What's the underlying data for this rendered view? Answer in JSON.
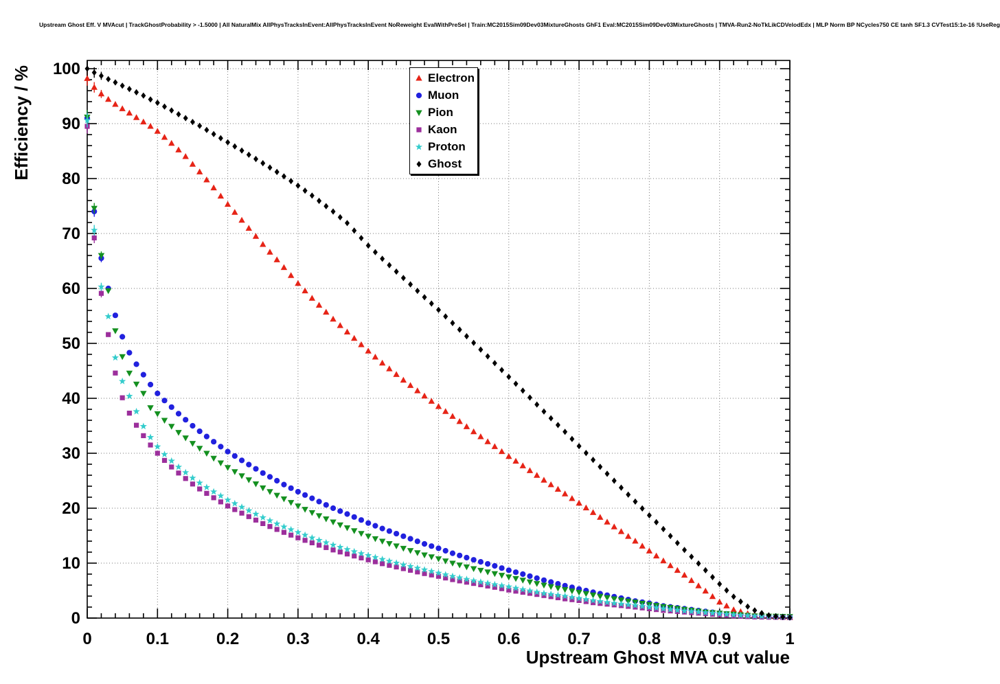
{
  "title": "Upstream Ghost Eff. V MVAcut | TrackGhostProbability > -1.5000 | All NaturalMix AllPhysTracksInEvent:AllPhysTracksInEvent NoReweight EvalWithPreSel | Train:MC2015Sim09Dev03MixtureGhosts GhF1 Eval:MC2015Sim09Dev03MixtureGhosts | TMVA-Run2-NoTkLikCDVelodEdx | MLP Norm BP NCycles750 CE tanh SF1.3 CVTest15:1e-16 !UseReg",
  "chart_data": {
    "type": "scatter",
    "title": "",
    "xlabel": "Upstream Ghost MVA cut value",
    "ylabel": "Efficiency / %",
    "xlim": [
      0,
      1
    ],
    "ylim": [
      0,
      100
    ],
    "grid": "dotted",
    "legend_position": "top-center",
    "x_tick_values": [
      0,
      0.1,
      0.2,
      0.3,
      0.4,
      0.5,
      0.6,
      0.7,
      0.8,
      0.9,
      1
    ],
    "x_tick_labels": [
      "0",
      "0.1",
      "0.2",
      "0.3",
      "0.4",
      "0.5",
      "0.6",
      "0.7",
      "0.8",
      "0.9",
      "1"
    ],
    "y_tick_values": [
      0,
      10,
      20,
      30,
      40,
      50,
      60,
      70,
      80,
      90,
      100
    ],
    "y_tick_labels": [
      "0",
      "10",
      "20",
      "30",
      "40",
      "50",
      "60",
      "70",
      "80",
      "90",
      "100"
    ],
    "series": [
      {
        "name": "Electron",
        "color": "#e62417",
        "marker": "triangle-up",
        "points": [
          [
            0,
            98.2
          ],
          [
            0.01,
            96.6
          ],
          [
            0.02,
            95.4
          ],
          [
            0.03,
            94.4
          ],
          [
            0.04,
            93.5
          ],
          [
            0.05,
            92.7
          ],
          [
            0.06,
            91.9
          ],
          [
            0.07,
            91.1
          ],
          [
            0.08,
            90.3
          ],
          [
            0.09,
            89.5
          ],
          [
            0.1,
            88.6
          ],
          [
            0.12,
            86.4
          ],
          [
            0.14,
            84
          ],
          [
            0.16,
            81.2
          ],
          [
            0.18,
            78.3
          ],
          [
            0.2,
            75.3
          ],
          [
            0.22,
            72.4
          ],
          [
            0.25,
            68
          ],
          [
            0.28,
            63.8
          ],
          [
            0.3,
            60.9
          ],
          [
            0.32,
            58.2
          ],
          [
            0.35,
            54.4
          ],
          [
            0.38,
            50.9
          ],
          [
            0.4,
            48.6
          ],
          [
            0.42,
            46.4
          ],
          [
            0.45,
            43.3
          ],
          [
            0.48,
            40.4
          ],
          [
            0.5,
            38.5
          ],
          [
            0.52,
            36.7
          ],
          [
            0.55,
            33.9
          ],
          [
            0.58,
            31.2
          ],
          [
            0.6,
            29.4
          ],
          [
            0.62,
            27.7
          ],
          [
            0.65,
            25.1
          ],
          [
            0.68,
            22.6
          ],
          [
            0.7,
            20.9
          ],
          [
            0.72,
            19.2
          ],
          [
            0.75,
            16.6
          ],
          [
            0.78,
            14
          ],
          [
            0.8,
            12.2
          ],
          [
            0.82,
            10.4
          ],
          [
            0.85,
            7.8
          ],
          [
            0.88,
            4.9
          ],
          [
            0.9,
            2.9
          ],
          [
            0.92,
            1.5
          ],
          [
            0.94,
            0.8
          ],
          [
            0.96,
            0.4
          ],
          [
            0.98,
            0.2
          ],
          [
            1,
            0.1
          ]
        ]
      },
      {
        "name": "Muon",
        "color": "#2121de",
        "marker": "circle",
        "points": [
          [
            0,
            91
          ],
          [
            0.01,
            74
          ],
          [
            0.02,
            65.5
          ],
          [
            0.03,
            60
          ],
          [
            0.04,
            55.1
          ],
          [
            0.05,
            51.2
          ],
          [
            0.06,
            48.3
          ],
          [
            0.07,
            46.2
          ],
          [
            0.08,
            44.3
          ],
          [
            0.09,
            42.5
          ],
          [
            0.1,
            40.9
          ],
          [
            0.11,
            39.6
          ],
          [
            0.12,
            38.4
          ],
          [
            0.13,
            37.2
          ],
          [
            0.14,
            36.1
          ],
          [
            0.15,
            35
          ],
          [
            0.16,
            34
          ],
          [
            0.18,
            32.1
          ],
          [
            0.2,
            30.3
          ],
          [
            0.22,
            28.7
          ],
          [
            0.25,
            26.4
          ],
          [
            0.28,
            24.3
          ],
          [
            0.3,
            23
          ],
          [
            0.32,
            21.8
          ],
          [
            0.35,
            20
          ],
          [
            0.38,
            18.4
          ],
          [
            0.4,
            17.3
          ],
          [
            0.42,
            16.3
          ],
          [
            0.45,
            14.9
          ],
          [
            0.48,
            13.5
          ],
          [
            0.5,
            12.7
          ],
          [
            0.52,
            11.8
          ],
          [
            0.55,
            10.6
          ],
          [
            0.58,
            9.5
          ],
          [
            0.6,
            8.7
          ],
          [
            0.62,
            8
          ],
          [
            0.65,
            6.9
          ],
          [
            0.68,
            5.9
          ],
          [
            0.7,
            5.3
          ],
          [
            0.72,
            4.7
          ],
          [
            0.75,
            3.9
          ],
          [
            0.78,
            3.1
          ],
          [
            0.8,
            2.7
          ],
          [
            0.82,
            2.2
          ],
          [
            0.85,
            1.7
          ],
          [
            0.88,
            1.2
          ],
          [
            0.9,
            0.9
          ],
          [
            0.92,
            0.6
          ],
          [
            0.95,
            0.3
          ],
          [
            1,
            0.1
          ]
        ]
      },
      {
        "name": "Pion",
        "color": "#149020",
        "marker": "triangle-down",
        "points": [
          [
            0,
            91.2
          ],
          [
            0.01,
            74.6
          ],
          [
            0.02,
            66
          ],
          [
            0.03,
            59.6
          ],
          [
            0.04,
            52.3
          ],
          [
            0.05,
            47.6
          ],
          [
            0.06,
            44.6
          ],
          [
            0.07,
            42.6
          ],
          [
            0.08,
            40.9
          ],
          [
            0.09,
            38.3
          ],
          [
            0.1,
            37.2
          ],
          [
            0.11,
            36
          ],
          [
            0.12,
            34.9
          ],
          [
            0.13,
            33.8
          ],
          [
            0.14,
            32.8
          ],
          [
            0.15,
            31.8
          ],
          [
            0.16,
            30.9
          ],
          [
            0.18,
            29.1
          ],
          [
            0.2,
            27.4
          ],
          [
            0.22,
            25.9
          ],
          [
            0.25,
            23.7
          ],
          [
            0.28,
            21.7
          ],
          [
            0.3,
            20.4
          ],
          [
            0.32,
            19.2
          ],
          [
            0.35,
            17.5
          ],
          [
            0.38,
            15.9
          ],
          [
            0.4,
            14.9
          ],
          [
            0.42,
            14
          ],
          [
            0.45,
            12.7
          ],
          [
            0.48,
            11.5
          ],
          [
            0.5,
            10.8
          ],
          [
            0.52,
            10
          ],
          [
            0.55,
            9
          ],
          [
            0.58,
            8.1
          ],
          [
            0.6,
            7.5
          ],
          [
            0.62,
            6.9
          ],
          [
            0.65,
            6
          ],
          [
            0.68,
            5.2
          ],
          [
            0.7,
            4.7
          ],
          [
            0.72,
            4.2
          ],
          [
            0.75,
            3.5
          ],
          [
            0.78,
            2.9
          ],
          [
            0.8,
            2.5
          ],
          [
            0.82,
            2.1
          ],
          [
            0.85,
            1.6
          ],
          [
            0.88,
            1.1
          ],
          [
            0.9,
            0.9
          ],
          [
            0.92,
            0.7
          ],
          [
            0.95,
            0.4
          ],
          [
            1,
            0.3
          ]
        ]
      },
      {
        "name": "Kaon",
        "color": "#9c2f9c",
        "marker": "square",
        "points": [
          [
            0,
            89.5
          ],
          [
            0.01,
            69.2
          ],
          [
            0.02,
            59.1
          ],
          [
            0.03,
            51.6
          ],
          [
            0.04,
            44.6
          ],
          [
            0.05,
            40.1
          ],
          [
            0.06,
            37.3
          ],
          [
            0.07,
            35.1
          ],
          [
            0.08,
            33.2
          ],
          [
            0.09,
            31.5
          ],
          [
            0.1,
            30
          ],
          [
            0.11,
            28.7
          ],
          [
            0.12,
            27.5
          ],
          [
            0.13,
            26.4
          ],
          [
            0.14,
            25.4
          ],
          [
            0.15,
            24.4
          ],
          [
            0.16,
            23.5
          ],
          [
            0.18,
            21.9
          ],
          [
            0.2,
            20.4
          ],
          [
            0.22,
            19.1
          ],
          [
            0.25,
            17.2
          ],
          [
            0.28,
            15.6
          ],
          [
            0.3,
            14.6
          ],
          [
            0.32,
            13.7
          ],
          [
            0.35,
            12.4
          ],
          [
            0.38,
            11.3
          ],
          [
            0.4,
            10.6
          ],
          [
            0.42,
            9.9
          ],
          [
            0.45,
            9
          ],
          [
            0.48,
            8.1
          ],
          [
            0.5,
            7.6
          ],
          [
            0.52,
            7
          ],
          [
            0.55,
            6.3
          ],
          [
            0.58,
            5.6
          ],
          [
            0.6,
            5.1
          ],
          [
            0.62,
            4.7
          ],
          [
            0.65,
            4.1
          ],
          [
            0.68,
            3.5
          ],
          [
            0.7,
            3.2
          ],
          [
            0.72,
            2.8
          ],
          [
            0.75,
            2.4
          ],
          [
            0.78,
            2
          ],
          [
            0.8,
            1.7
          ],
          [
            0.82,
            1.4
          ],
          [
            0.85,
            1.1
          ],
          [
            0.88,
            0.8
          ],
          [
            0.9,
            0.6
          ],
          [
            0.92,
            0.4
          ],
          [
            0.95,
            0.2
          ],
          [
            1,
            0.1
          ]
        ]
      },
      {
        "name": "Proton",
        "color": "#33cccc",
        "marker": "star",
        "points": [
          [
            0,
            90.6
          ],
          [
            0.01,
            70.6
          ],
          [
            0.02,
            60.3
          ],
          [
            0.03,
            54.9
          ],
          [
            0.04,
            47.4
          ],
          [
            0.05,
            43.1
          ],
          [
            0.06,
            40.4
          ],
          [
            0.07,
            37.6
          ],
          [
            0.08,
            34.9
          ],
          [
            0.09,
            32.9
          ],
          [
            0.1,
            31.2
          ],
          [
            0.11,
            29.8
          ],
          [
            0.12,
            28.6
          ],
          [
            0.13,
            27.5
          ],
          [
            0.14,
            26.5
          ],
          [
            0.15,
            25.5
          ],
          [
            0.16,
            24.6
          ],
          [
            0.18,
            23
          ],
          [
            0.2,
            21.5
          ],
          [
            0.22,
            20.2
          ],
          [
            0.25,
            18.3
          ],
          [
            0.28,
            16.6
          ],
          [
            0.3,
            15.6
          ],
          [
            0.32,
            14.6
          ],
          [
            0.35,
            13.3
          ],
          [
            0.38,
            12.1
          ],
          [
            0.4,
            11.4
          ],
          [
            0.42,
            10.7
          ],
          [
            0.45,
            9.7
          ],
          [
            0.48,
            8.8
          ],
          [
            0.5,
            8.2
          ],
          [
            0.52,
            7.6
          ],
          [
            0.55,
            6.8
          ],
          [
            0.58,
            6.1
          ],
          [
            0.6,
            5.7
          ],
          [
            0.62,
            5.2
          ],
          [
            0.65,
            4.5
          ],
          [
            0.68,
            4
          ],
          [
            0.7,
            3.6
          ],
          [
            0.72,
            3.2
          ],
          [
            0.75,
            2.7
          ],
          [
            0.78,
            2.3
          ],
          [
            0.8,
            2
          ],
          [
            0.82,
            1.7
          ],
          [
            0.85,
            1.3
          ],
          [
            0.88,
            1
          ],
          [
            0.9,
            0.8
          ],
          [
            0.92,
            0.6
          ],
          [
            0.95,
            0.35
          ],
          [
            1,
            0.2
          ]
        ]
      },
      {
        "name": "Ghost",
        "color": "#000000",
        "marker": "diamond",
        "points": [
          [
            0,
            100
          ],
          [
            0.01,
            99.3
          ],
          [
            0.02,
            98.7
          ],
          [
            0.03,
            98.1
          ],
          [
            0.04,
            97.5
          ],
          [
            0.05,
            96.9
          ],
          [
            0.06,
            96.3
          ],
          [
            0.07,
            95.7
          ],
          [
            0.08,
            95.1
          ],
          [
            0.09,
            94.4
          ],
          [
            0.1,
            93.8
          ],
          [
            0.12,
            92.4
          ],
          [
            0.14,
            91
          ],
          [
            0.16,
            89.6
          ],
          [
            0.18,
            88.1
          ],
          [
            0.2,
            86.6
          ],
          [
            0.22,
            85.1
          ],
          [
            0.25,
            82.8
          ],
          [
            0.28,
            80.4
          ],
          [
            0.3,
            78.7
          ],
          [
            0.32,
            76.9
          ],
          [
            0.35,
            74
          ],
          [
            0.37,
            71.9
          ],
          [
            0.4,
            67.8
          ],
          [
            0.42,
            65.4
          ],
          [
            0.45,
            61.9
          ],
          [
            0.48,
            58.4
          ],
          [
            0.5,
            56.1
          ],
          [
            0.52,
            53.7
          ],
          [
            0.55,
            50.1
          ],
          [
            0.58,
            46.4
          ],
          [
            0.6,
            43.9
          ],
          [
            0.62,
            41.4
          ],
          [
            0.65,
            37.6
          ],
          [
            0.68,
            33.9
          ],
          [
            0.7,
            31.3
          ],
          [
            0.72,
            28.8
          ],
          [
            0.75,
            25
          ],
          [
            0.78,
            21.2
          ],
          [
            0.8,
            18.7
          ],
          [
            0.82,
            16.2
          ],
          [
            0.85,
            12.4
          ],
          [
            0.88,
            8.7
          ],
          [
            0.9,
            6.2
          ],
          [
            0.92,
            3.9
          ],
          [
            0.94,
            2.1
          ],
          [
            0.95,
            1.4
          ],
          [
            0.96,
            0.9
          ],
          [
            0.97,
            0.5
          ],
          [
            0.98,
            0.3
          ],
          [
            1,
            0.1
          ]
        ]
      }
    ]
  }
}
